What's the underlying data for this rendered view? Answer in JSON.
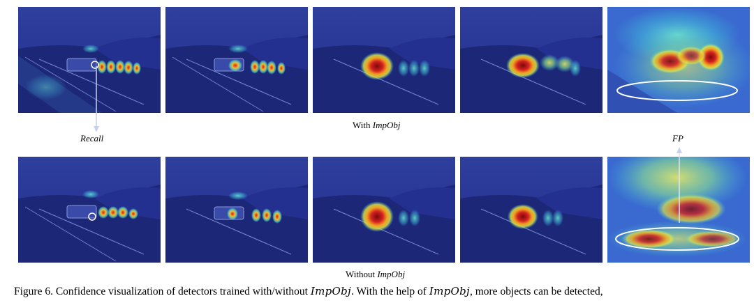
{
  "figure": {
    "row_top_label_prefix": "With ",
    "row_top_label_em": "ImpObj",
    "row_bottom_label_prefix": "Without ",
    "row_bottom_label_em": "ImpObj",
    "recall_label": "Recall",
    "fp_label": "FP"
  },
  "caption": {
    "part1": "Figure 6. Confidence visualization of detectors trained with/without ",
    "math1": "ImpObj",
    "part2": ". With the help of ",
    "math2": "ImpObj",
    "part3": ", more objects can be detected,"
  },
  "colors": {
    "base_blue": "#1f2f8c",
    "heat_red": "#c41a1a",
    "heat_yellow": "#f0e040",
    "heat_cyan": "#3fd0d8"
  }
}
